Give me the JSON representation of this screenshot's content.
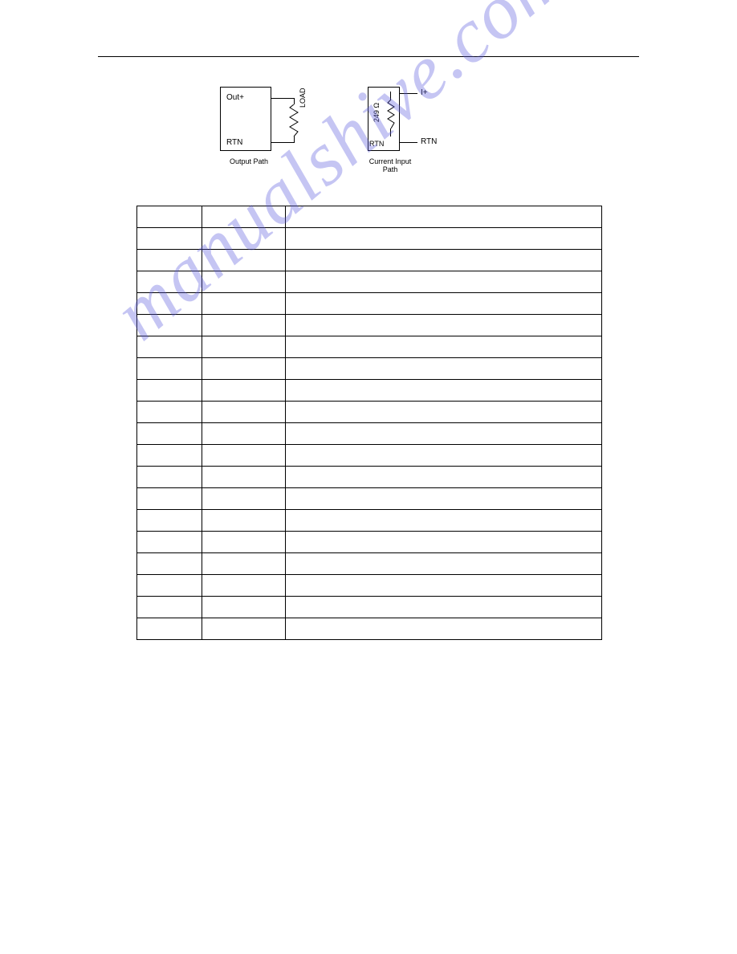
{
  "watermark": {
    "text": "manualshive.com"
  },
  "diagram": {
    "output": {
      "top_pin": "Out+",
      "bottom_pin": "RTN",
      "load_label": "LOAD",
      "caption": "Output Path"
    },
    "input": {
      "top_right_pin": "I+",
      "bottom_right_pin": "RTN",
      "inner_value": "249 Ω",
      "inner_rtn": "RTN",
      "caption": "Current Input\nPath"
    }
  },
  "table": {
    "rows": [
      [
        "",
        "",
        ""
      ],
      [
        "",
        "",
        ""
      ],
      [
        "",
        "",
        ""
      ],
      [
        "",
        "",
        ""
      ],
      [
        "",
        "",
        ""
      ],
      [
        "",
        "",
        ""
      ],
      [
        "",
        "",
        ""
      ],
      [
        "",
        "",
        ""
      ],
      [
        "",
        "",
        ""
      ],
      [
        "",
        "",
        ""
      ],
      [
        "",
        "",
        ""
      ],
      [
        "",
        "",
        ""
      ],
      [
        "",
        "",
        ""
      ],
      [
        "",
        "",
        ""
      ],
      [
        "",
        "",
        ""
      ],
      [
        "",
        "",
        ""
      ],
      [
        "",
        "",
        ""
      ],
      [
        "",
        "",
        ""
      ],
      [
        "",
        "",
        ""
      ],
      [
        "",
        "",
        ""
      ]
    ]
  }
}
